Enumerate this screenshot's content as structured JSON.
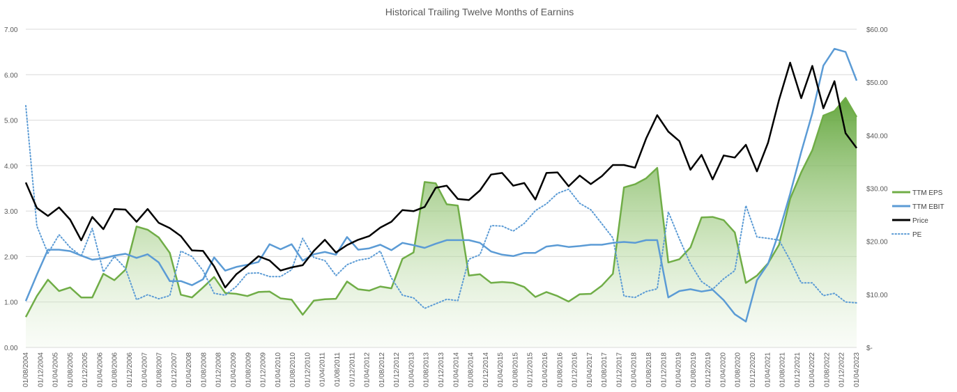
{
  "chart_data": {
    "type": "line",
    "title": "Historical Trailing Twelve Months of Earnins",
    "x_labels": [
      "01/08/2004",
      "01/12/2004",
      "01/04/2005",
      "01/08/2005",
      "01/12/2005",
      "01/04/2006",
      "01/08/2006",
      "01/12/2006",
      "01/04/2007",
      "01/08/2007",
      "01/12/2007",
      "01/04/2008",
      "01/08/2008",
      "01/12/2008",
      "01/04/2009",
      "01/08/2009",
      "01/12/2009",
      "01/04/2010",
      "01/08/2010",
      "01/12/2010",
      "01/04/2011",
      "01/08/2011",
      "01/12/2011",
      "01/04/2012",
      "01/08/2012",
      "01/12/2012",
      "01/04/2013",
      "01/08/2013",
      "01/12/2013",
      "01/04/2014",
      "01/08/2014",
      "01/12/2014",
      "01/04/2015",
      "01/08/2015",
      "01/12/2015",
      "01/04/2016",
      "01/08/2016",
      "01/12/2016",
      "01/04/2017",
      "01/08/2017",
      "01/12/2017",
      "01/04/2018",
      "01/08/2018",
      "01/12/2018",
      "01/04/2019",
      "01/08/2019",
      "01/12/2019",
      "01/04/2020",
      "01/08/2020",
      "01/12/2020",
      "01/04/2021",
      "01/08/2021",
      "01/12/2021",
      "01/04/2022",
      "01/08/2022",
      "01/12/2022",
      "01/04/2023"
    ],
    "left_axis": {
      "min": 0,
      "max": 7,
      "step": 1,
      "tick_labels": [
        "0.00",
        "1.00",
        "2.00",
        "3.00",
        "4.00",
        "5.00",
        "6.00",
        "7.00"
      ]
    },
    "right_axis": {
      "min": 0,
      "max": 60,
      "step": 10,
      "tick_labels": [
        "$-",
        "$10.00",
        "$20.00",
        "$30.00",
        "$40.00",
        "$50.00",
        "$60.00"
      ]
    },
    "grid": true,
    "legend_position": "right",
    "series": [
      {
        "name": "TTM EPS",
        "axis": "left",
        "style": "area-line",
        "color": "#70ad47",
        "values": [
          0.67,
          1.13,
          1.49,
          1.24,
          1.32,
          1.1,
          1.1,
          1.62,
          1.48,
          1.71,
          2.66,
          2.59,
          2.42,
          2.08,
          1.16,
          1.1,
          1.32,
          1.55,
          1.2,
          1.18,
          1.13,
          1.22,
          1.23,
          1.08,
          1.05,
          0.72,
          1.03,
          1.06,
          1.07,
          1.45,
          1.28,
          1.25,
          1.34,
          1.3,
          1.95,
          2.09,
          3.64,
          3.61,
          3.15,
          3.12,
          1.58,
          1.61,
          1.42,
          1.44,
          1.42,
          1.33,
          1.11,
          1.22,
          1.13,
          1.01,
          1.17,
          1.18,
          1.36,
          1.62,
          3.52,
          3.59,
          3.72,
          3.95,
          1.87,
          1.94,
          2.2,
          2.86,
          2.87,
          2.8,
          2.53,
          1.42,
          1.58,
          1.85,
          2.26,
          3.27,
          3.85,
          4.34,
          5.1,
          5.2,
          5.49,
          5.07
        ]
      },
      {
        "name": "TTM EBIT",
        "axis": "left",
        "style": "line",
        "color": "#5b9bd5",
        "values": [
          1.02,
          1.6,
          2.15,
          2.15,
          2.12,
          2.02,
          1.93,
          1.96,
          2.02,
          2.06,
          1.97,
          2.05,
          1.87,
          1.46,
          1.46,
          1.37,
          1.5,
          1.98,
          1.69,
          1.77,
          1.82,
          1.88,
          2.27,
          2.16,
          2.27,
          1.91,
          2.05,
          2.1,
          2.04,
          2.43,
          2.15,
          2.18,
          2.26,
          2.14,
          2.3,
          2.25,
          2.19,
          2.28,
          2.36,
          2.36,
          2.36,
          2.3,
          2.11,
          2.04,
          2.01,
          2.08,
          2.08,
          2.22,
          2.25,
          2.21,
          2.23,
          2.26,
          2.26,
          2.3,
          2.32,
          2.3,
          2.36,
          2.36,
          1.1,
          1.24,
          1.28,
          1.23,
          1.27,
          1.04,
          0.73,
          0.57,
          1.48,
          1.84,
          2.54,
          3.38,
          4.3,
          5.15,
          6.2,
          6.57,
          6.5,
          5.87
        ]
      },
      {
        "name": "Price",
        "axis": "right",
        "style": "line",
        "color": "#000000",
        "values": [
          31.1,
          26.3,
          24.8,
          26.4,
          24.1,
          20.2,
          24.6,
          22.3,
          26.1,
          26.0,
          23.7,
          26.1,
          23.5,
          22.5,
          21.0,
          18.3,
          18.2,
          15.3,
          11.3,
          13.8,
          15.4,
          17.2,
          16.4,
          14.5,
          15.1,
          15.5,
          18.2,
          20.3,
          17.9,
          19.3,
          20.3,
          21.0,
          22.6,
          23.7,
          25.9,
          25.7,
          26.5,
          30.1,
          30.5,
          28.0,
          27.8,
          29.6,
          32.6,
          32.9,
          30.5,
          31.0,
          27.9,
          32.9,
          33.0,
          30.4,
          32.4,
          30.8,
          32.3,
          34.4,
          34.4,
          33.9,
          39.4,
          43.8,
          40.7,
          38.9,
          33.5,
          36.3,
          31.7,
          36.2,
          35.8,
          38.2,
          33.2,
          38.6,
          46.7,
          53.7,
          47.0,
          53.1,
          45.1,
          50.2,
          40.4,
          37.6
        ]
      },
      {
        "name": "PE",
        "axis": "left",
        "style": "dotted",
        "color": "#5b9bd5",
        "values": [
          5.32,
          2.67,
          2.07,
          2.48,
          2.2,
          2.01,
          2.62,
          1.66,
          2.0,
          1.74,
          1.05,
          1.16,
          1.07,
          1.14,
          2.12,
          2.0,
          1.69,
          1.19,
          1.15,
          1.34,
          1.63,
          1.64,
          1.56,
          1.56,
          1.71,
          2.4,
          1.98,
          1.91,
          1.58,
          1.82,
          1.92,
          1.96,
          2.12,
          1.53,
          1.15,
          1.09,
          0.86,
          0.96,
          1.06,
          1.03,
          1.94,
          2.04,
          2.68,
          2.67,
          2.56,
          2.73,
          3.01,
          3.16,
          3.39,
          3.48,
          3.17,
          3.03,
          2.72,
          2.41,
          1.13,
          1.1,
          1.23,
          1.29,
          2.98,
          2.39,
          1.84,
          1.45,
          1.28,
          1.51,
          1.69,
          3.12,
          2.43,
          2.4,
          2.36,
          1.92,
          1.42,
          1.42,
          1.14,
          1.19,
          1.0,
          0.98
        ]
      }
    ]
  }
}
